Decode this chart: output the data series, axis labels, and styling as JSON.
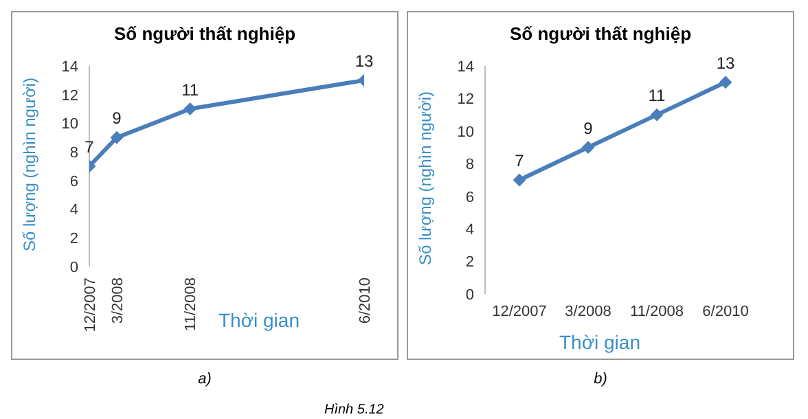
{
  "chart_data": [
    {
      "type": "line",
      "title": "Số người thất nghiệp",
      "xlabel": "Thời gian",
      "ylabel": "Số lượng (nghìn người)",
      "x": [
        "2007-12",
        "2008-03",
        "2008-11",
        "2010-06"
      ],
      "series": [
        {
          "color": "#4a7ebb",
          "values": [
            7,
            9,
            11,
            13
          ]
        }
      ],
      "xlim": [
        "2007-12",
        "2010-06"
      ],
      "xticks": [
        {
          "value": "2007-12",
          "label": "12/2007"
        },
        {
          "value": "2008-03",
          "label": "3/2008"
        },
        {
          "value": "2008-11",
          "label": "11/2008"
        },
        {
          "value": "2010-06",
          "label": "6/2010"
        }
      ],
      "ylim": [
        0,
        14
      ],
      "yticks": [
        0,
        2,
        4,
        6,
        8,
        10,
        12,
        14
      ],
      "marker": "diamond",
      "data_labels": true,
      "legend": false,
      "grid": false,
      "annotations": [
        "a)"
      ]
    },
    {
      "type": "line",
      "title": "Số người thất nghiệp",
      "xlabel": "Thời gian",
      "ylabel": "Số lượng (nghìn người)",
      "categories": [
        "12/2007",
        "3/2008",
        "11/2008",
        "6/2010"
      ],
      "series": [
        {
          "color": "#4a7ebb",
          "values": [
            7,
            9,
            11,
            13
          ]
        }
      ],
      "ylim": [
        0,
        14
      ],
      "yticks": [
        0,
        2,
        4,
        6,
        8,
        10,
        12,
        14
      ],
      "marker": "diamond",
      "data_labels": true,
      "legend": false,
      "grid": false,
      "annotations": [
        "b)",
        "Hình 5.12"
      ]
    }
  ]
}
